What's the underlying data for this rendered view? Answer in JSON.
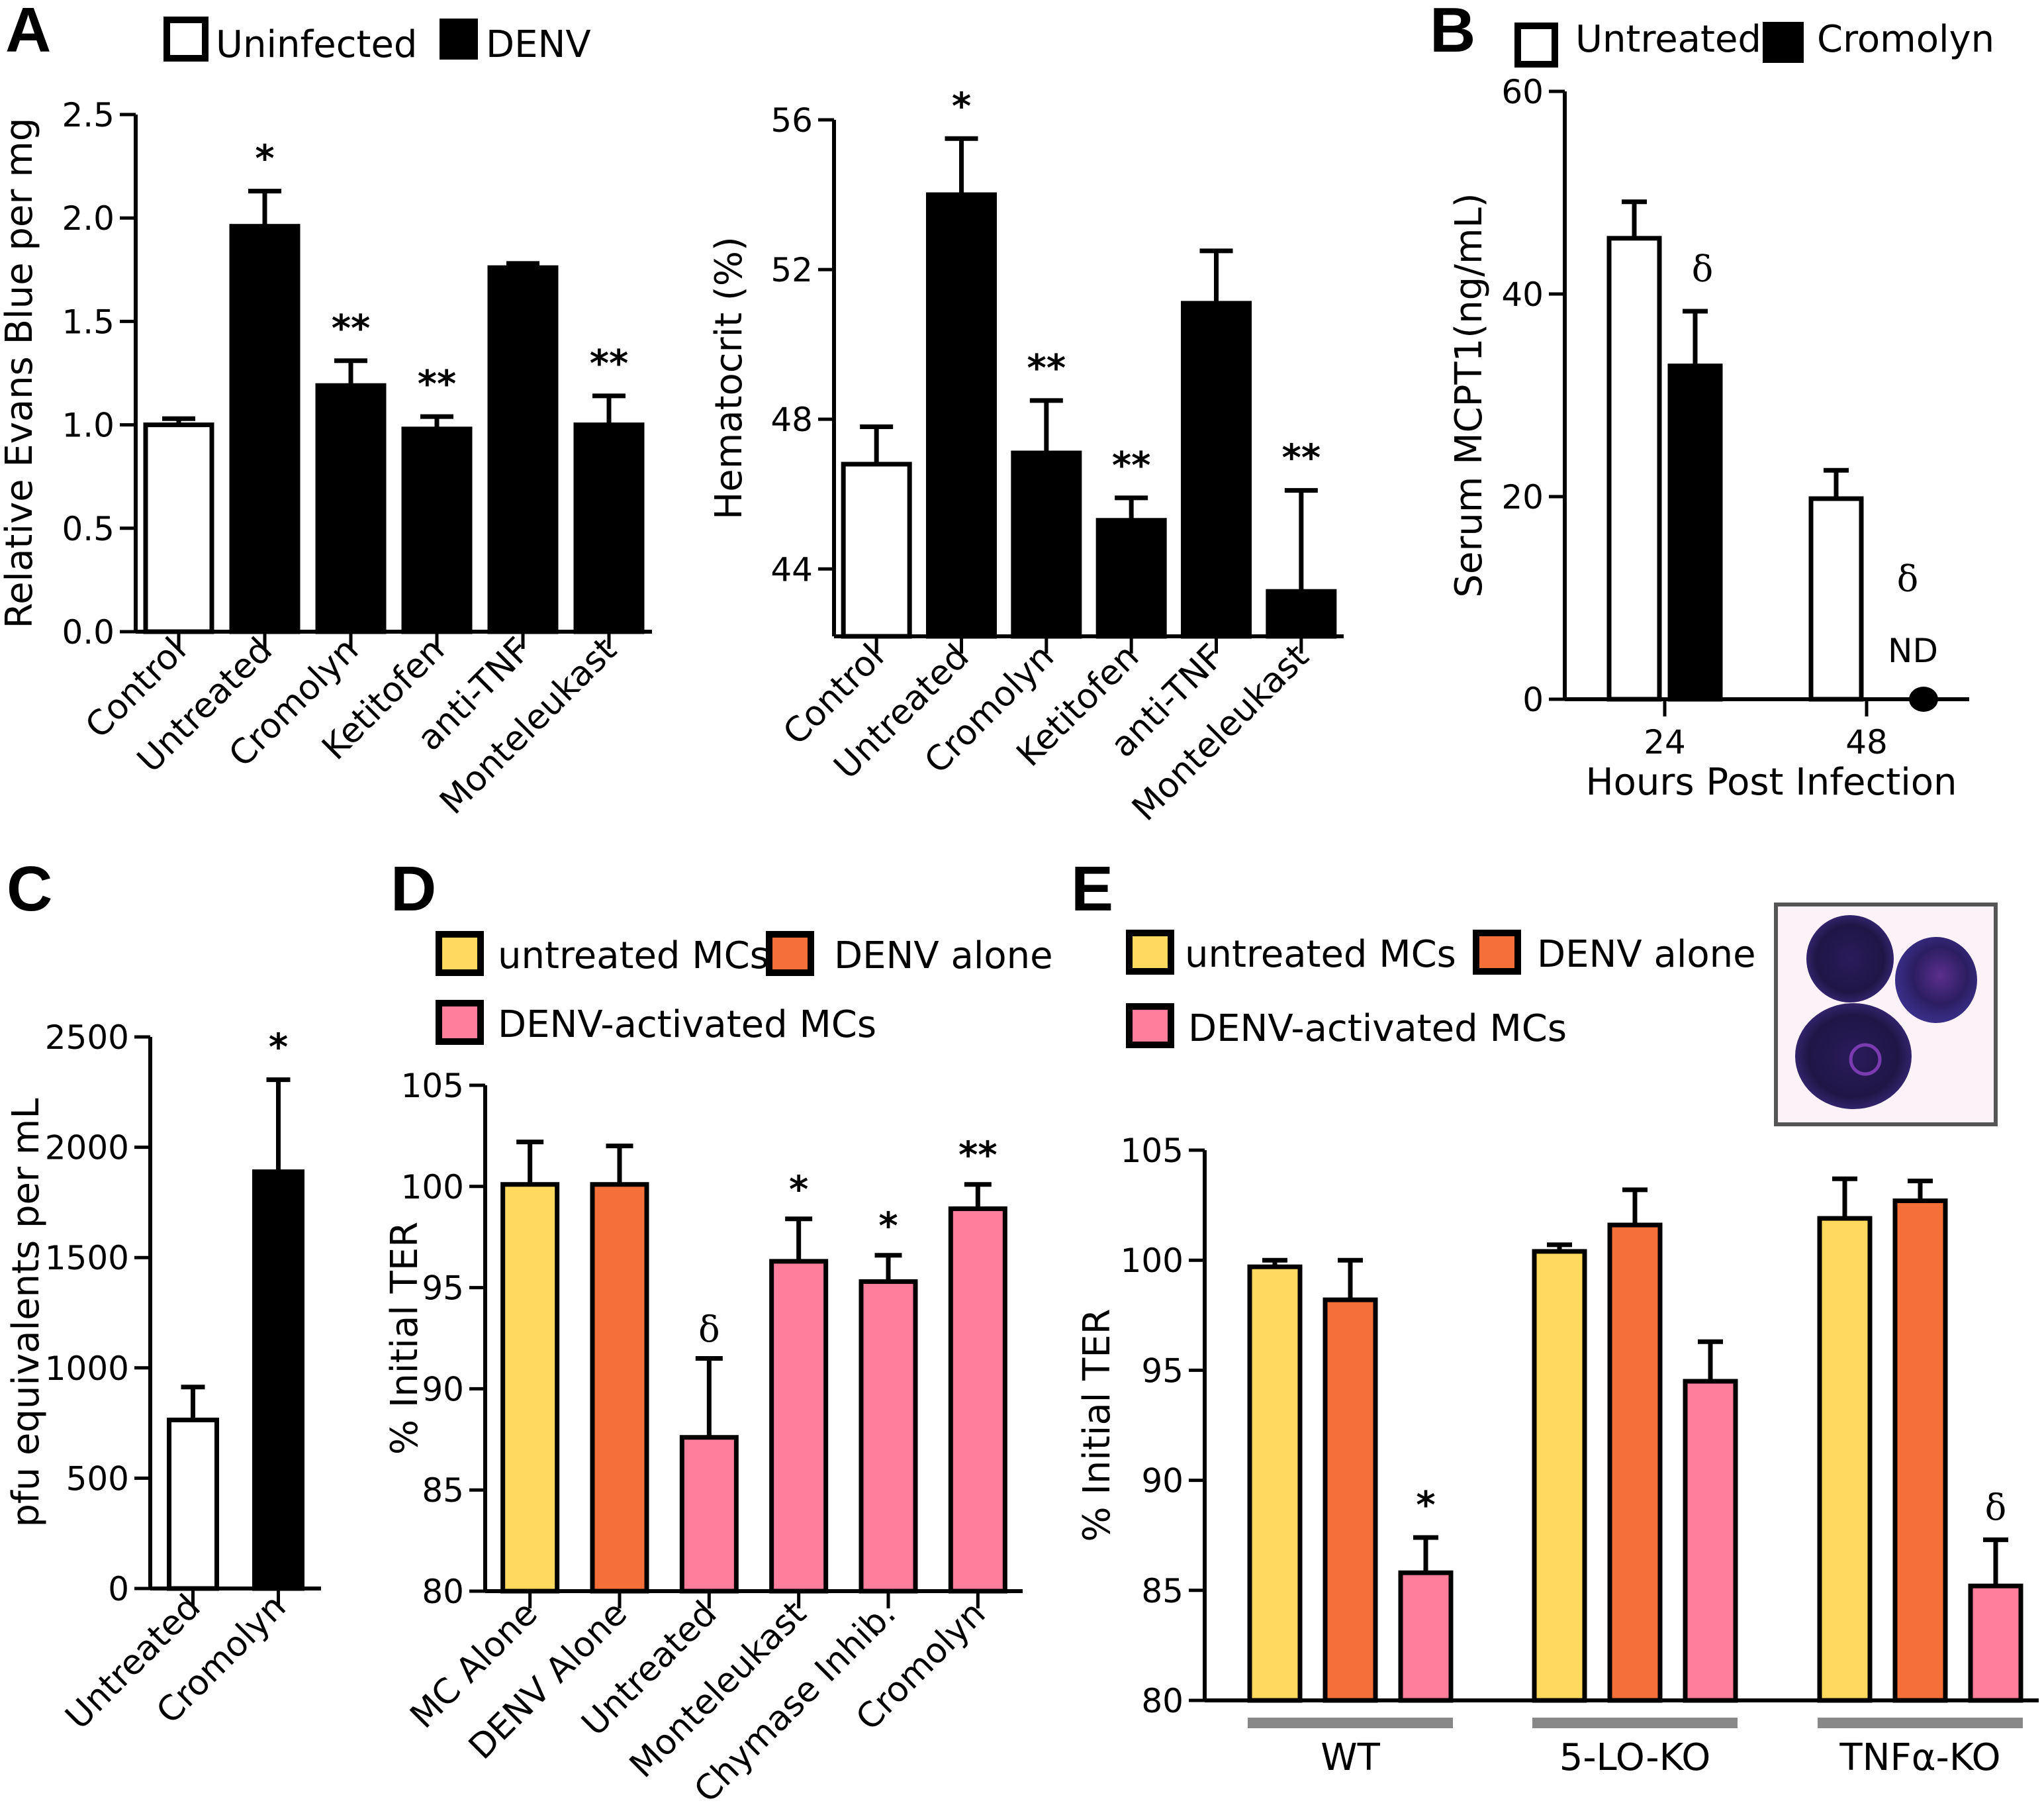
{
  "figure": {
    "colors": {
      "uninfected": "#ffffff",
      "denv": "#000000",
      "untreated_mcs": "#FFDA5E",
      "denv_alone": "#F47038",
      "denv_activated_mcs": "#FF7E9C",
      "group_bar": "#888888",
      "inset_border": "#555555"
    }
  },
  "chart_data": [
    {
      "id": "A1",
      "panel": "A",
      "type": "bar",
      "title": "",
      "legend": [
        {
          "label": "Uninfected",
          "color": "#ffffff"
        },
        {
          "label": "DENV",
          "color": "#000000"
        }
      ],
      "legend_position": "top",
      "xlabel": "",
      "ylabel": "Relative Evans Blue per mg",
      "ylim": [
        0,
        2.5
      ],
      "yticks": [
        0.0,
        0.5,
        1.0,
        1.5,
        2.0,
        2.5
      ],
      "ytick_labels": [
        "0.0",
        "0.5",
        "1.0",
        "1.5",
        "2.0",
        "2.5"
      ],
      "categories": [
        "Control",
        "Untreated",
        "Cromolyn",
        "Ketitofen",
        "anti-TNF",
        "Monteleukast"
      ],
      "values": [
        1.0,
        1.96,
        1.19,
        0.98,
        1.76,
        1.0
      ],
      "error_upper": [
        1.03,
        2.13,
        1.31,
        1.04,
        1.78,
        1.14
      ],
      "bar_groups": [
        "Uninfected",
        "DENV",
        "DENV",
        "DENV",
        "DENV",
        "DENV"
      ],
      "annotations": [
        "",
        "*",
        "**",
        "**",
        "",
        "**"
      ],
      "grid": false
    },
    {
      "id": "A2",
      "panel": "A",
      "type": "bar",
      "title": "",
      "xlabel": "",
      "ylabel": "Hematocrit (%)",
      "ylim": [
        42.2,
        56
      ],
      "yticks": [
        44,
        48,
        52,
        56
      ],
      "ytick_labels": [
        "44",
        "48",
        "52",
        "56"
      ],
      "categories": [
        "Control",
        "Untreated",
        "Cromolyn",
        "Ketitofen",
        "anti-TNF",
        "Monteleukast"
      ],
      "values": [
        46.8,
        54.0,
        47.1,
        45.3,
        51.1,
        43.4
      ],
      "error_upper": [
        47.8,
        55.5,
        48.5,
        45.9,
        52.5,
        46.1
      ],
      "bar_groups": [
        "Uninfected",
        "DENV",
        "DENV",
        "DENV",
        "DENV",
        "DENV"
      ],
      "annotations": [
        "",
        "*",
        "**",
        "**",
        "",
        "**"
      ],
      "grid": false
    },
    {
      "id": "B",
      "panel": "B",
      "type": "bar",
      "title": "",
      "legend": [
        {
          "label": "Untreated",
          "color": "#ffffff"
        },
        {
          "label": "Cromolyn",
          "color": "#000000"
        }
      ],
      "legend_position": "top",
      "xlabel": "Hours Post Infection",
      "ylabel": "Serum MCPT1(ng/mL)",
      "ylim": [
        0,
        60
      ],
      "yticks": [
        0,
        20,
        40,
        60
      ],
      "ytick_labels": [
        "0",
        "20",
        "40",
        "60"
      ],
      "categories": [
        "24",
        "48"
      ],
      "series": [
        {
          "name": "Untreated",
          "values": [
            45.5,
            19.8
          ],
          "error_upper": [
            49.1,
            22.6
          ]
        },
        {
          "name": "Cromolyn",
          "values": [
            32.9,
            0
          ],
          "error_upper": [
            38.3,
            null
          ]
        }
      ],
      "annotations": [
        {
          "series": "Cromolyn",
          "category": "24",
          "text": "δ"
        },
        {
          "series": "Cromolyn",
          "category": "48",
          "text": "δ"
        },
        {
          "series": "Cromolyn",
          "category": "48",
          "text": "ND"
        }
      ],
      "grid": false
    },
    {
      "id": "C",
      "panel": "C",
      "type": "bar",
      "title": "",
      "xlabel": "",
      "ylabel": "pfu equivalents per mL",
      "ylim": [
        0,
        2500
      ],
      "yticks": [
        0,
        500,
        1000,
        1500,
        2000,
        2500
      ],
      "ytick_labels": [
        "0",
        "500",
        "1000",
        "1500",
        "2000",
        "2500"
      ],
      "categories": [
        "Untreated",
        "Cromolyn"
      ],
      "values": [
        764,
        1889
      ],
      "error_upper": [
        913,
        2306
      ],
      "bar_groups": [
        "Untreated",
        "Cromolyn"
      ],
      "annotations": [
        "",
        "*"
      ],
      "grid": false
    },
    {
      "id": "D",
      "panel": "D",
      "type": "bar",
      "title": "",
      "legend": [
        {
          "label": "untreated MCs",
          "color": "#FFDA5E"
        },
        {
          "label": "DENV alone",
          "color": "#F47038"
        },
        {
          "label": "DENV-activated MCs",
          "color": "#FF7E9C"
        }
      ],
      "legend_position": "top",
      "xlabel": "",
      "ylabel": "% Initial TER",
      "ylim": [
        80,
        105
      ],
      "yticks": [
        80,
        85,
        90,
        95,
        100,
        105
      ],
      "ytick_labels": [
        "80",
        "85",
        "90",
        "95",
        "100",
        "105"
      ],
      "categories": [
        "MC Alone",
        "DENV Alone",
        "Untreated",
        "Monteleukast",
        "Chymase Inhib.",
        "Cromolyn"
      ],
      "values": [
        100.1,
        100.1,
        87.6,
        96.3,
        95.3,
        98.9
      ],
      "error_upper": [
        102.2,
        102.0,
        91.5,
        98.4,
        96.6,
        100.1
      ],
      "bar_groups": [
        "untreated MCs",
        "DENV alone",
        "DENV-activated MCs",
        "DENV-activated MCs",
        "DENV-activated MCs",
        "DENV-activated MCs"
      ],
      "annotations": [
        "",
        "",
        "δ",
        "*",
        "*",
        "**"
      ],
      "grid": false
    },
    {
      "id": "E",
      "panel": "E",
      "type": "bar",
      "title": "",
      "legend": [
        {
          "label": "untreated MCs",
          "color": "#FFDA5E"
        },
        {
          "label": "DENV alone",
          "color": "#F47038"
        },
        {
          "label": "DENV-activated MCs",
          "color": "#FF7E9C"
        }
      ],
      "legend_position": "top-left",
      "xlabel": "",
      "ylabel": "% Initial TER",
      "ylim": [
        80,
        105
      ],
      "yticks": [
        80,
        85,
        90,
        95,
        100,
        105
      ],
      "ytick_labels": [
        "80",
        "85",
        "90",
        "95",
        "100",
        "105"
      ],
      "categories": [
        "WT",
        "5-LO-KO",
        "TNFα-KO"
      ],
      "series": [
        {
          "name": "untreated MCs",
          "values": [
            99.7,
            100.4,
            101.9
          ],
          "error_upper": [
            100.0,
            100.7,
            103.7
          ]
        },
        {
          "name": "DENV alone",
          "values": [
            98.2,
            101.6,
            102.7
          ],
          "error_upper": [
            100.0,
            103.2,
            103.6
          ]
        },
        {
          "name": "DENV-activated MCs",
          "values": [
            85.8,
            94.5,
            85.2
          ],
          "error_upper": [
            87.4,
            96.3,
            87.3
          ]
        }
      ],
      "annotations": [
        {
          "series": "DENV-activated MCs",
          "category": "WT",
          "text": "*"
        },
        {
          "series": "DENV-activated MCs",
          "category": "TNFα-KO",
          "text": "δ"
        }
      ],
      "inset": "mast-cell-micrograph",
      "grid": false
    }
  ],
  "panel_labels": [
    "A",
    "B",
    "C",
    "D",
    "E"
  ]
}
